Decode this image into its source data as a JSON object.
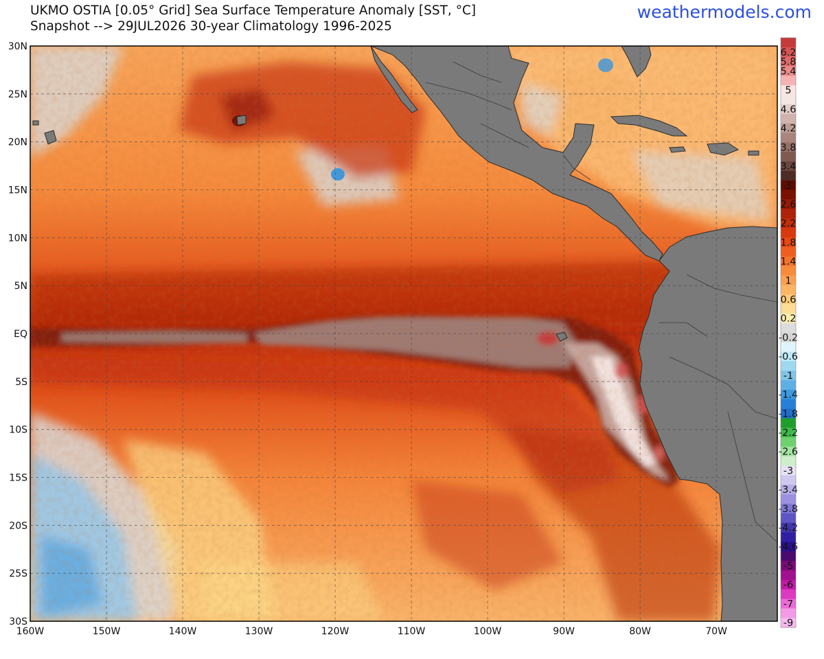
{
  "header": {
    "title_line1": "UKMO OSTIA [0.05° Grid] Sea Surface Temperature Anomaly [SST, °C]",
    "title_line2": "Snapshot --> 29JUL2026   30-year Climatology 1996-2025",
    "brand": "weathermodels.com"
  },
  "map": {
    "lon_range": [
      -160,
      -62
    ],
    "lat_range": [
      -30,
      30
    ],
    "lon_ticks": [
      {
        "v": -160,
        "label": "160W"
      },
      {
        "v": -150,
        "label": "150W"
      },
      {
        "v": -140,
        "label": "140W"
      },
      {
        "v": -130,
        "label": "130W"
      },
      {
        "v": -120,
        "label": "120W"
      },
      {
        "v": -110,
        "label": "110W"
      },
      {
        "v": -100,
        "label": "100W"
      },
      {
        "v": -90,
        "label": "90W"
      },
      {
        "v": -80,
        "label": "80W"
      },
      {
        "v": -70,
        "label": "70W"
      }
    ],
    "lat_ticks": [
      {
        "v": 30,
        "label": "30N"
      },
      {
        "v": 25,
        "label": "25N"
      },
      {
        "v": 20,
        "label": "20N"
      },
      {
        "v": 15,
        "label": "15N"
      },
      {
        "v": 10,
        "label": "10N"
      },
      {
        "v": 5,
        "label": "5N"
      },
      {
        "v": 0,
        "label": "EQ"
      },
      {
        "v": -5,
        "label": "5S"
      },
      {
        "v": -10,
        "label": "10S"
      },
      {
        "v": -15,
        "label": "15S"
      },
      {
        "v": -20,
        "label": "20S"
      },
      {
        "v": -25,
        "label": "25S"
      },
      {
        "v": -30,
        "label": "30S"
      }
    ],
    "colors": {
      "land": "#7a7a7a",
      "neutral": "#d8d8d8",
      "warm_light": "#fbd98a",
      "warm_mid": "#f58a3c",
      "warm_strong": "#d63a12",
      "warm_very_strong": "#8e1a08",
      "extreme": "#9b7f78",
      "cool": "#8cc6ee"
    }
  },
  "colorbar": {
    "segments": [
      {
        "color": "#c53a3a",
        "label": ""
      },
      {
        "color": "#d45353",
        "label": "6.2"
      },
      {
        "color": "#e06a6a",
        "label": "5.8"
      },
      {
        "color": "#eb8a8a",
        "label": "5.4"
      },
      {
        "color": "#f5b3b3",
        "label": ""
      },
      {
        "color": "#fde4e4",
        "label": "5"
      },
      {
        "color": "#f3e6e3",
        "label": ""
      },
      {
        "color": "#e2cfca",
        "label": "4.6"
      },
      {
        "color": "#cfb3ac",
        "label": ""
      },
      {
        "color": "#bd9c94",
        "label": "4.2"
      },
      {
        "color": "#a9857c",
        "label": ""
      },
      {
        "color": "#967067",
        "label": "3.8"
      },
      {
        "color": "#7e5a52",
        "label": ""
      },
      {
        "color": "#6a4740",
        "label": "3.4"
      },
      {
        "color": "#4e2c25",
        "label": ""
      },
      {
        "color": "#5e0c02",
        "label": "3"
      },
      {
        "color": "#7a1204",
        "label": ""
      },
      {
        "color": "#951a06",
        "label": "2.6"
      },
      {
        "color": "#ae2308",
        "label": ""
      },
      {
        "color": "#c42d0a",
        "label": "2.2"
      },
      {
        "color": "#d8380d",
        "label": ""
      },
      {
        "color": "#e64a16",
        "label": "1.8"
      },
      {
        "color": "#ef5e20",
        "label": ""
      },
      {
        "color": "#f5742c",
        "label": "1.4"
      },
      {
        "color": "#f88b3c",
        "label": ""
      },
      {
        "color": "#faa050",
        "label": "1"
      },
      {
        "color": "#fbb565",
        "label": ""
      },
      {
        "color": "#fcca7c",
        "label": "0.6"
      },
      {
        "color": "#fddc95",
        "label": ""
      },
      {
        "color": "#feeeae",
        "label": "0.2"
      },
      {
        "color": "#dcdcdc",
        "label": ""
      },
      {
        "color": "#d4d4d4",
        "label": "-0.2"
      },
      {
        "color": "#def5fb",
        "label": ""
      },
      {
        "color": "#bfe9f6",
        "label": "-0.6"
      },
      {
        "color": "#9fd9f0",
        "label": ""
      },
      {
        "color": "#7fc5ea",
        "label": "-1"
      },
      {
        "color": "#5eb0e4",
        "label": ""
      },
      {
        "color": "#3f99de",
        "label": "-1.4"
      },
      {
        "color": "#2680d6",
        "label": ""
      },
      {
        "color": "#1f6fc9",
        "label": "-1.8"
      },
      {
        "color": "#1f9e2e",
        "label": ""
      },
      {
        "color": "#3fb84a",
        "label": "-2.2"
      },
      {
        "color": "#6fd070",
        "label": ""
      },
      {
        "color": "#a2e39f",
        "label": "-2.6"
      },
      {
        "color": "#cdf0cb",
        "label": ""
      },
      {
        "color": "#e6e3f5",
        "label": "-3"
      },
      {
        "color": "#cfc9f0",
        "label": ""
      },
      {
        "color": "#b6aee9",
        "label": "-3.4"
      },
      {
        "color": "#9c92e0",
        "label": ""
      },
      {
        "color": "#8076d5",
        "label": "-3.8"
      },
      {
        "color": "#5f55c4",
        "label": ""
      },
      {
        "color": "#4436b0",
        "label": "-4.2"
      },
      {
        "color": "#2f1fa0",
        "label": ""
      },
      {
        "color": "#2a0f8f",
        "label": "-4.6"
      },
      {
        "color": "#4b0a6e",
        "label": ""
      },
      {
        "color": "#7b0a78",
        "label": "-5"
      },
      {
        "color": "#a0108f",
        "label": ""
      },
      {
        "color": "#c21aa8",
        "label": "-6"
      },
      {
        "color": "#dc3ac0",
        "label": ""
      },
      {
        "color": "#ec6ad6",
        "label": "-7"
      },
      {
        "color": "#f49ae6",
        "label": ""
      },
      {
        "color": "#f7b8ee",
        "label": "-9"
      }
    ]
  }
}
